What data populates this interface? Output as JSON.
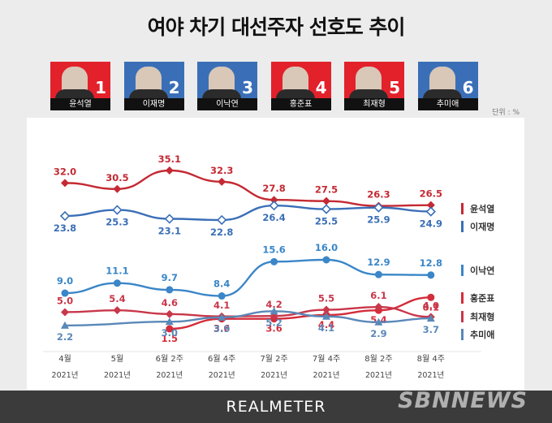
{
  "title": "여야 차기 대선주자 선호도 추이",
  "unit": "단위 : %",
  "candidates": [
    {
      "num": "1",
      "name": "윤석열",
      "bg": "#e2212b"
    },
    {
      "num": "2",
      "name": "이재명",
      "bg": "#3a6fb7"
    },
    {
      "num": "3",
      "name": "이낙연",
      "bg": "#3a6fb7"
    },
    {
      "num": "4",
      "name": "홍준표",
      "bg": "#e2212b"
    },
    {
      "num": "5",
      "name": "최재형",
      "bg": "#e2212b"
    },
    {
      "num": "6",
      "name": "추미애",
      "bg": "#3a6fb7"
    }
  ],
  "brand": "REALMETER",
  "watermark": "SBNNEWS",
  "chart_data": {
    "type": "line",
    "categories": [
      "4월",
      "5월",
      "6월 2주",
      "6월 4주",
      "7월 2주",
      "7월 4주",
      "8월 2주",
      "8월 4주"
    ],
    "category_years": [
      "2021년",
      "2021년",
      "2021년",
      "2021년",
      "2021년",
      "2021년",
      "2021년",
      "2021년"
    ],
    "series": [
      {
        "name": "윤석열",
        "color": "#c42a33",
        "marker": "diamond",
        "values": [
          32.0,
          30.5,
          35.1,
          32.3,
          27.8,
          27.5,
          26.3,
          26.5
        ]
      },
      {
        "name": "이재명",
        "color": "#3a6fb7",
        "marker": "diamond-open",
        "values": [
          23.8,
          25.3,
          23.1,
          22.8,
          26.4,
          25.5,
          25.9,
          24.9
        ]
      },
      {
        "name": "이낙연",
        "color": "#3a86c8",
        "marker": "circle",
        "values": [
          9.0,
          11.1,
          9.7,
          8.4,
          15.6,
          16.0,
          12.9,
          12.8
        ]
      },
      {
        "name": "홍준표",
        "color": "#d42c3a",
        "marker": "circle",
        "values": [
          null,
          null,
          1.5,
          3.6,
          3.6,
          4.4,
          5.4,
          8.1
        ]
      },
      {
        "name": "최재형",
        "color": "#c8374a",
        "marker": "diamond",
        "values": [
          5.0,
          5.4,
          4.6,
          4.1,
          4.2,
          5.5,
          6.1,
          4.0
        ]
      },
      {
        "name": "추미애",
        "color": "#5a88b8",
        "marker": "triangle",
        "values": [
          2.2,
          null,
          3.0,
          3.9,
          5.2,
          4.1,
          2.9,
          3.7
        ]
      }
    ],
    "value_labels": {
      "윤석열": [
        "32.0",
        "30.5",
        "35.1",
        "32.3",
        "27.8",
        "27.5",
        "26.3",
        "26.5"
      ],
      "이재명": [
        "23.8",
        "25.3",
        "23.1",
        "22.8",
        "26.4",
        "25.5",
        "25.9",
        "24.9"
      ],
      "이낙연": [
        "9.0",
        "11.1",
        "9.7",
        "8.4",
        "15.6",
        "16.0",
        "12.9",
        "12.8"
      ],
      "홍준표": [
        null,
        null,
        "1.5",
        "3.6",
        "3.6",
        "4.4",
        "5.4",
        "8.1"
      ],
      "최재형": [
        "5.0",
        "5.4",
        "4.6",
        "4.1",
        "4.2",
        "5.5",
        "6.1",
        "4.0"
      ],
      "추미애": [
        "2.2",
        null,
        "3.0",
        "3.9",
        "5.2",
        "4.1",
        "2.9",
        "3.7"
      ]
    },
    "legend_placement": "right",
    "grid": false
  }
}
